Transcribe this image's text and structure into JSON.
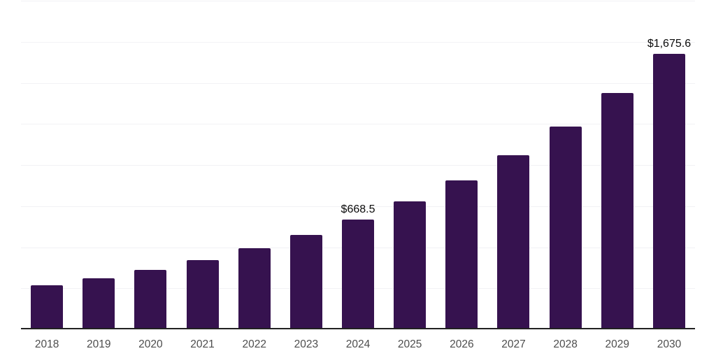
{
  "chart_data": {
    "type": "bar",
    "categories": [
      "2018",
      "2019",
      "2020",
      "2021",
      "2022",
      "2023",
      "2024",
      "2025",
      "2026",
      "2027",
      "2028",
      "2029",
      "2030"
    ],
    "values": [
      266.6,
      310.8,
      362.2,
      422.2,
      492.1,
      573.5,
      668.5,
      779.2,
      908.2,
      1058.5,
      1233.7,
      1437.7,
      1675.6
    ],
    "data_labels": {
      "2024": "$668.5",
      "2030": "$1,675.6"
    },
    "ylim": [
      0,
      2000
    ],
    "grid_step": 250,
    "grid": "on",
    "legend": "off",
    "y_axis_tick_labels": "none"
  },
  "style": {
    "bar_color": "#36124F",
    "grid_color": "#F2F2F5",
    "axis_color": "#222222",
    "tick_label_color": "#4D4D4D",
    "data_label_color": "#0A0A0A",
    "background_color": "#FFFFFF"
  }
}
